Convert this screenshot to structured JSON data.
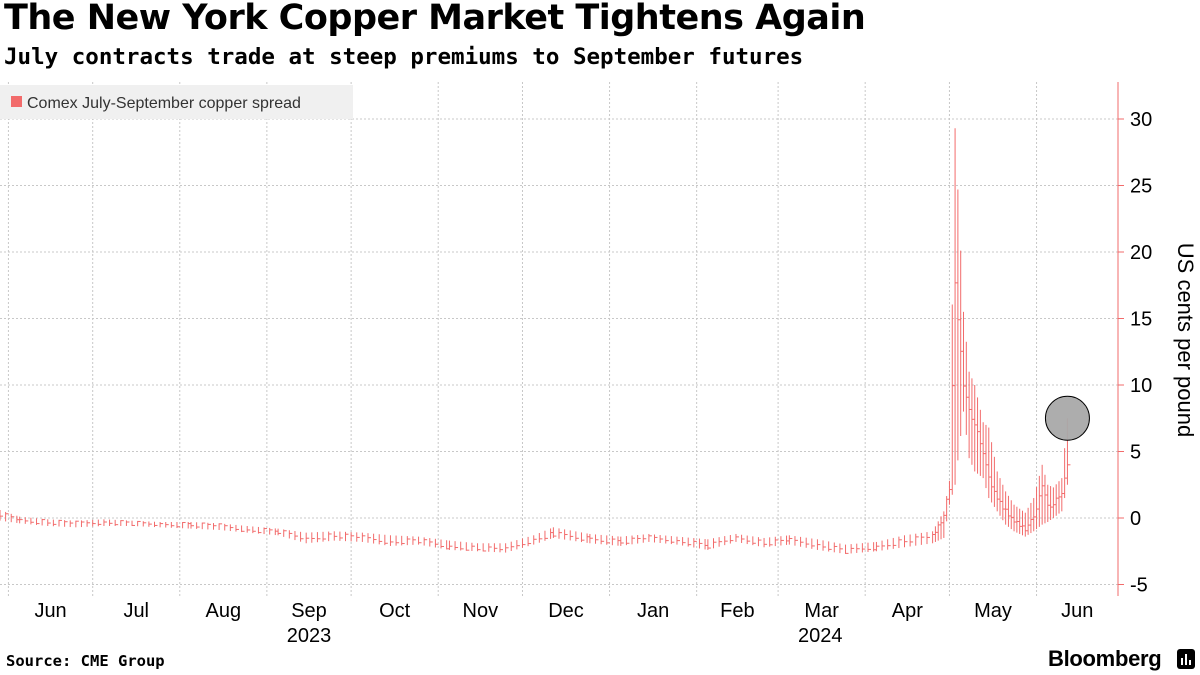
{
  "title": "The New York Copper Market Tightens Again",
  "subtitle": "July contracts trade at steep premiums to September futures",
  "source": "Source: CME Group",
  "brand": "Bloomberg",
  "colors": {
    "series": "#f26b6b",
    "grid": "#c8c8c8",
    "legend_bg": "#f0f0f0",
    "marker": "#a9a9a9"
  },
  "chart_data": {
    "type": "line",
    "style": "OHLC-style daily ranges",
    "ylabel": "US cents per pound",
    "ylim": [
      -5,
      32
    ],
    "yticks": [
      -5,
      0,
      5,
      10,
      15,
      20,
      25,
      30
    ],
    "xlim": [
      "2023-05-29",
      "2024-06-30"
    ],
    "xticks": [
      {
        "label": "Jun",
        "date": "2023-06-01"
      },
      {
        "label": "Jul",
        "date": "2023-07-01"
      },
      {
        "label": "Aug",
        "date": "2023-08-01"
      },
      {
        "label": "Sep",
        "date": "2023-09-01"
      },
      {
        "label": "Oct",
        "date": "2023-10-01"
      },
      {
        "label": "Nov",
        "date": "2023-11-01"
      },
      {
        "label": "Dec",
        "date": "2023-12-01"
      },
      {
        "label": "Jan",
        "date": "2024-01-01"
      },
      {
        "label": "Feb",
        "date": "2024-02-01"
      },
      {
        "label": "Mar",
        "date": "2024-03-01"
      },
      {
        "label": "Apr",
        "date": "2024-04-01"
      },
      {
        "label": "May",
        "date": "2024-05-01"
      },
      {
        "label": "Jun",
        "date": "2024-06-01"
      }
    ],
    "year_labels": [
      {
        "label": "2023",
        "date": "2023-09-01"
      },
      {
        "label": "2024",
        "date": "2024-03-01"
      }
    ],
    "legend": {
      "position": "top-left"
    },
    "grid": true,
    "highlight": {
      "date": "2024-06-12",
      "value": 7.5
    },
    "series": [
      {
        "name": "Comex July-September copper spread",
        "points": [
          {
            "date": "2023-05-29",
            "low": -0.2,
            "high": 0.6,
            "close": 0.3
          },
          {
            "date": "2023-06-05",
            "low": -0.4,
            "high": 0.1,
            "close": -0.2
          },
          {
            "date": "2023-06-15",
            "low": -0.6,
            "high": -0.1,
            "close": -0.3
          },
          {
            "date": "2023-06-25",
            "low": -0.7,
            "high": -0.2,
            "close": -0.4
          },
          {
            "date": "2023-07-05",
            "low": -0.6,
            "high": -0.1,
            "close": -0.3
          },
          {
            "date": "2023-07-15",
            "low": -0.6,
            "high": -0.2,
            "close": -0.4
          },
          {
            "date": "2023-07-25",
            "low": -0.7,
            "high": -0.3,
            "close": -0.5
          },
          {
            "date": "2023-08-05",
            "low": -0.8,
            "high": -0.3,
            "close": -0.5
          },
          {
            "date": "2023-08-15",
            "low": -0.9,
            "high": -0.4,
            "close": -0.6
          },
          {
            "date": "2023-08-25",
            "low": -1.1,
            "high": -0.6,
            "close": -0.9
          },
          {
            "date": "2023-09-05",
            "low": -1.3,
            "high": -0.8,
            "close": -1.0
          },
          {
            "date": "2023-09-15",
            "low": -1.9,
            "high": -1.1,
            "close": -1.6
          },
          {
            "date": "2023-09-25",
            "low": -1.7,
            "high": -1.0,
            "close": -1.3
          },
          {
            "date": "2023-10-05",
            "low": -1.8,
            "high": -1.1,
            "close": -1.5
          },
          {
            "date": "2023-10-15",
            "low": -2.1,
            "high": -1.3,
            "close": -1.8
          },
          {
            "date": "2023-10-25",
            "low": -2.0,
            "high": -1.4,
            "close": -1.7
          },
          {
            "date": "2023-11-05",
            "low": -2.4,
            "high": -1.7,
            "close": -2.2
          },
          {
            "date": "2023-11-15",
            "low": -2.5,
            "high": -1.9,
            "close": -2.3
          },
          {
            "date": "2023-11-25",
            "low": -2.6,
            "high": -1.9,
            "close": -2.4
          },
          {
            "date": "2023-12-05",
            "low": -2.0,
            "high": -1.3,
            "close": -1.6
          },
          {
            "date": "2023-12-12",
            "low": -1.5,
            "high": -0.7,
            "close": -1.2
          },
          {
            "date": "2023-12-25",
            "low": -1.9,
            "high": -1.2,
            "close": -1.6
          },
          {
            "date": "2024-01-05",
            "low": -2.1,
            "high": -1.4,
            "close": -1.8
          },
          {
            "date": "2024-01-15",
            "low": -1.8,
            "high": -1.2,
            "close": -1.5
          },
          {
            "date": "2024-01-25",
            "low": -2.0,
            "high": -1.4,
            "close": -1.7
          },
          {
            "date": "2024-02-05",
            "low": -2.4,
            "high": -1.6,
            "close": -2.1
          },
          {
            "date": "2024-02-15",
            "low": -1.8,
            "high": -1.2,
            "close": -1.5
          },
          {
            "date": "2024-02-25",
            "low": -2.2,
            "high": -1.5,
            "close": -1.9
          },
          {
            "date": "2024-03-05",
            "low": -2.0,
            "high": -1.3,
            "close": -1.7
          },
          {
            "date": "2024-03-15",
            "low": -2.4,
            "high": -1.6,
            "close": -2.0
          },
          {
            "date": "2024-03-25",
            "low": -2.7,
            "high": -2.0,
            "close": -2.5
          },
          {
            "date": "2024-04-05",
            "low": -2.5,
            "high": -1.8,
            "close": -2.2
          },
          {
            "date": "2024-04-15",
            "low": -2.2,
            "high": -1.3,
            "close": -1.7
          },
          {
            "date": "2024-04-25",
            "low": -1.9,
            "high": -1.0,
            "close": -1.4
          },
          {
            "date": "2024-04-29",
            "low": -1.5,
            "high": 0.5,
            "close": 0.2
          },
          {
            "date": "2024-05-01",
            "low": 1.0,
            "high": 2.8,
            "close": 2.3
          },
          {
            "date": "2024-05-03",
            "low": 2.5,
            "high": 29.3,
            "close": 17.6
          },
          {
            "date": "2024-05-06",
            "low": 8.0,
            "high": 15.5,
            "close": 10.0
          },
          {
            "date": "2024-05-08",
            "low": 4.5,
            "high": 11.0,
            "close": 8.0
          },
          {
            "date": "2024-05-10",
            "low": 3.5,
            "high": 10.0,
            "close": 7.0
          },
          {
            "date": "2024-05-13",
            "low": 3.0,
            "high": 7.2,
            "close": 5.0
          },
          {
            "date": "2024-05-15",
            "low": 1.5,
            "high": 6.8,
            "close": 3.0
          },
          {
            "date": "2024-05-18",
            "low": 0.5,
            "high": 3.5,
            "close": 1.5
          },
          {
            "date": "2024-05-21",
            "low": -0.5,
            "high": 2.0,
            "close": 0.5
          },
          {
            "date": "2024-05-24",
            "low": -1.0,
            "high": 1.0,
            "close": -0.3
          },
          {
            "date": "2024-05-28",
            "low": -1.4,
            "high": 0.4,
            "close": -0.8
          },
          {
            "date": "2024-05-31",
            "low": -1.0,
            "high": 1.5,
            "close": 0.0
          },
          {
            "date": "2024-06-03",
            "low": -0.5,
            "high": 4.0,
            "close": 2.5
          },
          {
            "date": "2024-06-05",
            "low": -0.3,
            "high": 2.5,
            "close": 0.8
          },
          {
            "date": "2024-06-07",
            "low": 0.0,
            "high": 2.3,
            "close": 1.0
          },
          {
            "date": "2024-06-10",
            "low": 0.5,
            "high": 3.0,
            "close": 2.0
          },
          {
            "date": "2024-06-12",
            "low": 2.5,
            "high": 7.5,
            "close": 4.0
          }
        ]
      }
    ]
  }
}
